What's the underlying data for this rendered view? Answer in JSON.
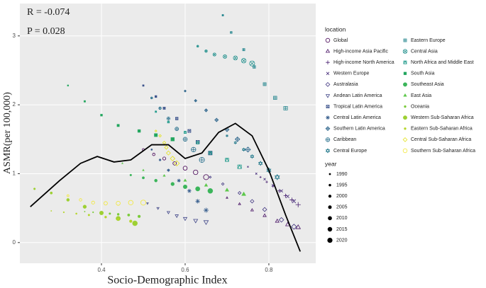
{
  "chart_data": {
    "type": "scatter",
    "x_label": "Socio-Demographic Index",
    "y_label": "ASMR(per 100,000)",
    "annotations": [
      "R = -0.074",
      "P =  0.028"
    ],
    "xlim": [
      0.205,
      0.912
    ],
    "ylim": [
      -0.3,
      3.47
    ],
    "xticks": [
      0.4,
      0.6,
      0.8
    ],
    "yticks": [
      0,
      1,
      2,
      3
    ],
    "grid": true,
    "legend_title": "location",
    "size_title": "year",
    "years": [
      1990,
      1995,
      2000,
      2005,
      2010,
      2015,
      2020
    ],
    "curve": {
      "color": "#000000",
      "x": [
        0.23,
        0.3,
        0.35,
        0.39,
        0.43,
        0.47,
        0.52,
        0.56,
        0.6,
        0.64,
        0.68,
        0.72,
        0.76,
        0.8,
        0.84,
        0.875
      ],
      "y": [
        0.52,
        0.9,
        1.15,
        1.25,
        1.17,
        1.2,
        1.42,
        1.42,
        1.22,
        1.3,
        1.6,
        1.73,
        1.55,
        1.05,
        0.4,
        -0.13
      ]
    },
    "series": [
      {
        "name": "Global",
        "color": "#440154",
        "shape": "circle",
        "x": [
          0.5,
          0.525,
          0.55,
          0.575,
          0.6,
          0.625,
          0.65
        ],
        "y": [
          1.35,
          1.28,
          1.22,
          1.15,
          1.08,
          1.02,
          0.95
        ]
      },
      {
        "name": "High-income Asia Pacific",
        "color": "#471164",
        "shape": "triangle",
        "x": [
          0.7,
          0.73,
          0.76,
          0.79,
          0.82,
          0.845,
          0.87
        ],
        "y": [
          0.65,
          0.56,
          0.47,
          0.39,
          0.31,
          0.26,
          0.22
        ]
      },
      {
        "name": "High-income North America",
        "color": "#481F70",
        "shape": "plus",
        "x": [
          0.78,
          0.795,
          0.81,
          0.825,
          0.84,
          0.855,
          0.87
        ],
        "y": [
          0.95,
          0.88,
          0.82,
          0.75,
          0.68,
          0.62,
          0.55
        ]
      },
      {
        "name": "Western Europe",
        "color": "#472D7B",
        "shape": "cross",
        "x": [
          0.75,
          0.77,
          0.79,
          0.81,
          0.83,
          0.845,
          0.86
        ],
        "y": [
          1.1,
          1.0,
          0.92,
          0.83,
          0.75,
          0.67,
          0.6
        ]
      },
      {
        "name": "Australasia",
        "color": "#443A83",
        "shape": "diamond",
        "x": [
          0.66,
          0.69,
          0.73,
          0.76,
          0.79,
          0.83,
          0.86
        ],
        "y": [
          0.95,
          0.85,
          0.72,
          0.6,
          0.48,
          0.33,
          0.23
        ]
      },
      {
        "name": "Andean Latin America",
        "color": "#404688",
        "shape": "triangle-down",
        "x": [
          0.51,
          0.535,
          0.56,
          0.58,
          0.6,
          0.625,
          0.65
        ],
        "y": [
          0.57,
          0.5,
          0.44,
          0.39,
          0.35,
          0.32,
          0.3
        ]
      },
      {
        "name": "Tropical Latin America",
        "color": "#3B528B",
        "shape": "square-cross",
        "x": [
          0.5,
          0.53,
          0.55,
          0.58,
          0.61,
          0.63,
          0.66
        ],
        "y": [
          2.28,
          2.12,
          1.95,
          1.8,
          1.62,
          1.46,
          1.3
        ]
      },
      {
        "name": "Central Latin America",
        "color": "#365D8D",
        "shape": "asterisk",
        "x": [
          0.52,
          0.54,
          0.56,
          0.585,
          0.61,
          0.63,
          0.65
        ],
        "y": [
          1.35,
          1.2,
          1.05,
          0.9,
          0.75,
          0.6,
          0.47
        ]
      },
      {
        "name": "Southern Latin America",
        "color": "#31688E",
        "shape": "diamond-plus",
        "x": [
          0.6,
          0.625,
          0.65,
          0.675,
          0.7,
          0.725,
          0.75
        ],
        "y": [
          2.2,
          2.06,
          1.92,
          1.78,
          1.64,
          1.5,
          1.35
        ]
      },
      {
        "name": "Caribbean",
        "color": "#2C728E",
        "shape": "circle-plus",
        "x": [
          0.52,
          0.54,
          0.56,
          0.58,
          0.6,
          0.62,
          0.64
        ],
        "y": [
          2.1,
          1.95,
          1.8,
          1.65,
          1.5,
          1.35,
          1.2
        ]
      },
      {
        "name": "Central Europe",
        "color": "#287C8E",
        "shape": "hexagram",
        "x": [
          0.7,
          0.72,
          0.74,
          0.76,
          0.78,
          0.8,
          0.82
        ],
        "y": [
          1.55,
          1.45,
          1.35,
          1.25,
          1.15,
          1.05,
          0.95
        ]
      },
      {
        "name": "Eastern Europe",
        "color": "#24868E",
        "shape": "square-plus",
        "x": [
          0.69,
          0.71,
          0.74,
          0.765,
          0.79,
          0.815,
          0.84
        ],
        "y": [
          3.3,
          3.05,
          2.8,
          2.55,
          2.3,
          2.1,
          1.95
        ]
      },
      {
        "name": "Central Asia",
        "color": "#21908C",
        "shape": "circle-cross",
        "x": [
          0.63,
          0.65,
          0.67,
          0.695,
          0.72,
          0.74,
          0.76
        ],
        "y": [
          2.85,
          2.78,
          2.73,
          2.7,
          2.68,
          2.64,
          2.6
        ]
      },
      {
        "name": "North Africa and Middle East",
        "color": "#1F9A8A",
        "shape": "square-triangle",
        "x": [
          0.53,
          0.56,
          0.6,
          0.63,
          0.66,
          0.7,
          0.73
        ],
        "y": [
          1.9,
          1.75,
          1.6,
          1.45,
          1.3,
          1.2,
          1.1
        ]
      },
      {
        "name": "South Asia",
        "color": "#22A65E",
        "shape": "square-filled",
        "x": [
          0.32,
          0.36,
          0.4,
          0.44,
          0.49,
          0.53,
          0.57
        ],
        "y": [
          2.28,
          2.05,
          1.85,
          1.7,
          1.62,
          1.56,
          1.5
        ]
      },
      {
        "name": "Southeast Asia",
        "color": "#3BB55A",
        "shape": "circle-filled",
        "x": [
          0.47,
          0.5,
          0.53,
          0.57,
          0.6,
          0.63,
          0.66
        ],
        "y": [
          0.98,
          0.94,
          0.9,
          0.85,
          0.81,
          0.78,
          0.75
        ]
      },
      {
        "name": "East Asia",
        "color": "#5CC84A",
        "shape": "triangle-filled",
        "x": [
          0.45,
          0.5,
          0.55,
          0.6,
          0.65,
          0.7,
          0.74
        ],
        "y": [
          1.15,
          1.05,
          0.97,
          0.9,
          0.83,
          0.76,
          0.7
        ]
      },
      {
        "name": "Oceania",
        "color": "#7ACB3A",
        "shape": "dot",
        "x": [
          0.36,
          0.38,
          0.4,
          0.42,
          0.44,
          0.465,
          0.49
        ],
        "y": [
          0.45,
          0.44,
          0.43,
          0.42,
          0.41,
          0.4,
          0.38
        ]
      },
      {
        "name": "Western Sub-Saharan Africa",
        "color": "#9DD032",
        "shape": "circle-filled",
        "x": [
          0.24,
          0.28,
          0.32,
          0.36,
          0.4,
          0.44,
          0.48
        ],
        "y": [
          0.78,
          0.72,
          0.62,
          0.52,
          0.43,
          0.35,
          0.28
        ]
      },
      {
        "name": "Eastern Sub-Saharan Africa",
        "color": "#B5D52A",
        "shape": "dot",
        "x": [
          0.28,
          0.31,
          0.34,
          0.37,
          0.41,
          0.44,
          0.47
        ],
        "y": [
          0.46,
          0.44,
          0.42,
          0.4,
          0.37,
          0.34,
          0.31
        ]
      },
      {
        "name": "Central Sub-Saharan Africa",
        "color": "#E3E21C",
        "shape": "diamond",
        "x": [
          0.53,
          0.54,
          0.55,
          0.555,
          0.56,
          0.57,
          0.58
        ],
        "y": [
          1.62,
          1.55,
          1.45,
          1.38,
          1.3,
          1.22,
          1.15
        ]
      },
      {
        "name": "Southern Sub-Saharan Africa",
        "color": "#F2E838",
        "shape": "circle",
        "x": [
          0.32,
          0.35,
          0.38,
          0.41,
          0.44,
          0.47,
          0.5
        ],
        "y": [
          0.68,
          0.62,
          0.58,
          0.57,
          0.57,
          0.58,
          0.58
        ]
      }
    ]
  }
}
